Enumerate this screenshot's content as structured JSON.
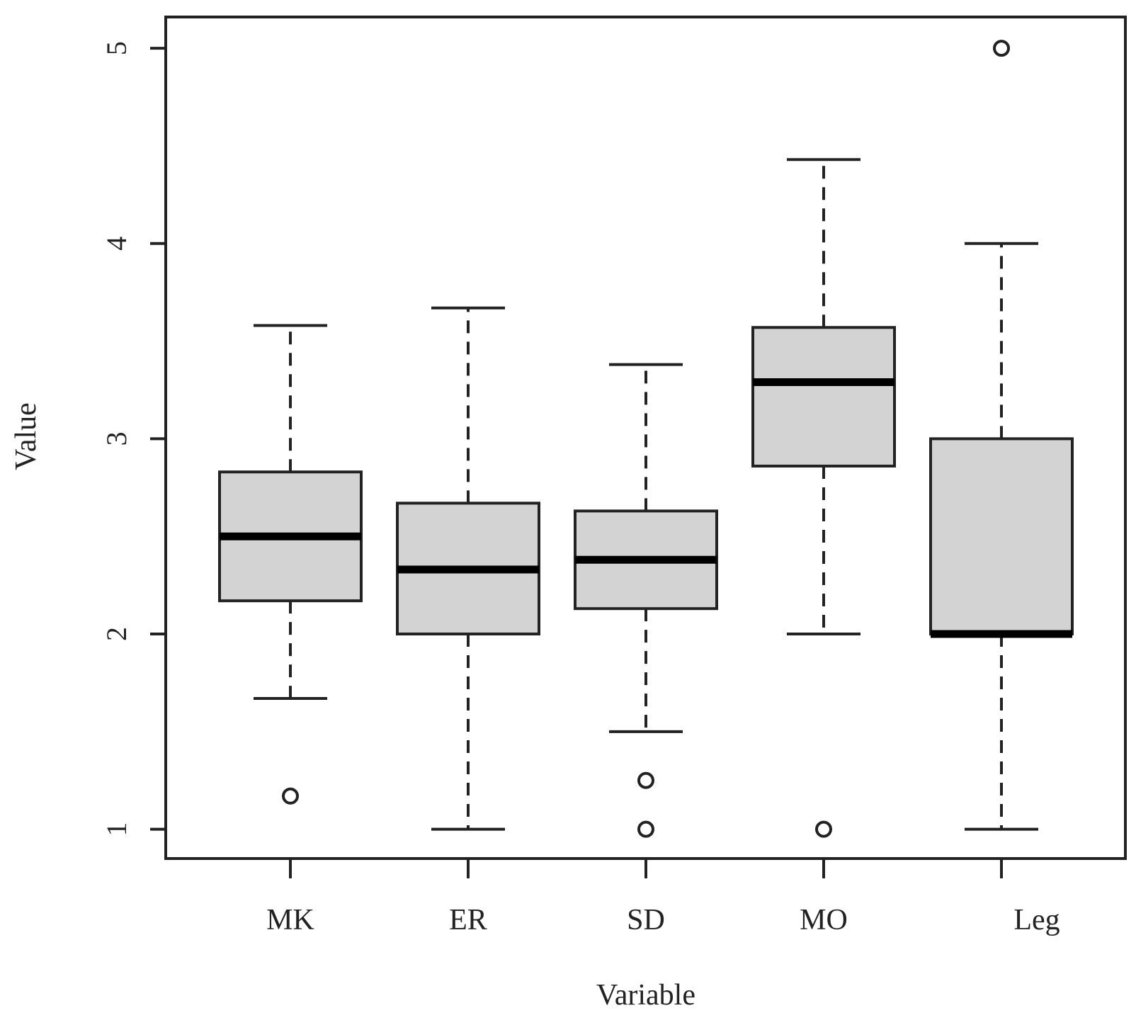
{
  "chart_data": {
    "type": "boxplot",
    "title": "",
    "xlabel": "Variable",
    "ylabel": "Value",
    "ylim": [
      0.85,
      5.16
    ],
    "yticks": [
      1,
      2,
      3,
      4,
      5
    ],
    "ytick_labels": [
      "1",
      "2",
      "3",
      "4",
      "5"
    ],
    "categories": [
      "MK",
      "ER",
      "SD",
      "MO",
      "Leg"
    ],
    "grid": false,
    "legend": false,
    "colors": {
      "box_fill": "#d3d3d3",
      "stroke": "#222222"
    },
    "boxes": [
      {
        "category": "MK",
        "whisker_low": 1.67,
        "q1": 2.17,
        "median": 2.5,
        "q3": 2.83,
        "whisker_high": 3.58,
        "outliers": [
          1.17
        ]
      },
      {
        "category": "ER",
        "whisker_low": 1.0,
        "q1": 2.0,
        "median": 2.33,
        "q3": 2.67,
        "whisker_high": 3.67,
        "outliers": []
      },
      {
        "category": "SD",
        "whisker_low": 1.5,
        "q1": 2.13,
        "median": 2.38,
        "q3": 2.63,
        "whisker_high": 3.38,
        "outliers": [
          1.25,
          1.0
        ]
      },
      {
        "category": "MO",
        "whisker_low": 2.0,
        "q1": 2.86,
        "median": 3.29,
        "q3": 3.57,
        "whisker_high": 4.43,
        "outliers": [
          1.0
        ]
      },
      {
        "category": "Leg",
        "whisker_low": 1.0,
        "q1": 2.0,
        "median": 2.0,
        "q3": 3.0,
        "whisker_high": 4.0,
        "outliers": [
          5.0
        ]
      }
    ]
  }
}
